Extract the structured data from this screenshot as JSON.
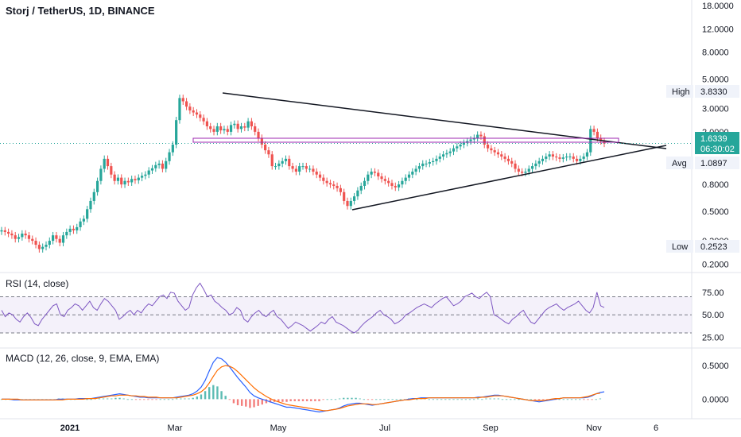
{
  "chart_data": [
    {
      "type": "candlestick",
      "title": "Storj / TetherUS, 1D, BINANCE",
      "yscale": "log",
      "ylim": [
        0.18,
        18.5
      ],
      "x_tick_labels": [
        "2021",
        "Mar",
        "May",
        "Jul",
        "Sep",
        "Nov",
        "6"
      ],
      "y_tick_labels": [
        "18.0000",
        "12.0000",
        "8.0000",
        "5.0000",
        "3.0000",
        "2.0000",
        "0.8000",
        "0.5000",
        "0.3000",
        "0.2000"
      ],
      "markers": {
        "high_label": "High",
        "high_value": "3.8330",
        "last_value": "1.6339",
        "countdown": "06:30:02",
        "avg_label": "Avg",
        "avg_value": "1.0897",
        "low_label": "Low",
        "low_value": "0.2523"
      },
      "series": [
        {
          "values": [
            0.36,
            0.35,
            0.34,
            0.33,
            0.31,
            0.32,
            0.34,
            0.33,
            0.31,
            0.3,
            0.28,
            0.26,
            0.27,
            0.28,
            0.3,
            0.33,
            0.31,
            0.29,
            0.33,
            0.35,
            0.37,
            0.36,
            0.38,
            0.42,
            0.44,
            0.52,
            0.6,
            0.7,
            0.85,
            1.05,
            1.25,
            1.1,
            0.95,
            0.85,
            0.9,
            0.8,
            0.85,
            0.83,
            0.88,
            0.86,
            0.9,
            0.93,
            0.95,
            1.02,
            1.06,
            1.12,
            1.15,
            1.05,
            1.2,
            1.4,
            1.6,
            2.45,
            3.6,
            3.4,
            3.1,
            2.9,
            2.8,
            2.7,
            2.55,
            2.4,
            2.2,
            2.1,
            2.0,
            2.2,
            2.05,
            2.1,
            2.0,
            2.25,
            2.3,
            2.1,
            2.2,
            2.15,
            2.4,
            2.2,
            2.0,
            1.8,
            1.6,
            1.45,
            1.35,
            1.1,
            1.1,
            1.15,
            1.2,
            1.25,
            1.1,
            1.05,
            1.0,
            1.1,
            1.1,
            1.05,
            1.05,
            1.0,
            0.95,
            0.9,
            0.85,
            0.82,
            0.8,
            0.78,
            0.75,
            0.7,
            0.6,
            0.55,
            0.6,
            0.65,
            0.72,
            0.78,
            0.85,
            0.95,
            1.0,
            0.98,
            0.92,
            0.88,
            0.85,
            0.82,
            0.78,
            0.76,
            0.8,
            0.85,
            0.9,
            0.95,
            1.0,
            1.05,
            1.1,
            1.15,
            1.15,
            1.18,
            1.2,
            1.25,
            1.3,
            1.35,
            1.38,
            1.42,
            1.5,
            1.55,
            1.6,
            1.65,
            1.7,
            1.75,
            1.8,
            1.9,
            1.85,
            1.6,
            1.5,
            1.45,
            1.4,
            1.35,
            1.3,
            1.25,
            1.2,
            1.15,
            1.05,
            1.0,
            0.98,
            1.0,
            1.05,
            1.1,
            1.15,
            1.2,
            1.25,
            1.3,
            1.35,
            1.3,
            1.28,
            1.25,
            1.28,
            1.3,
            1.3,
            1.25,
            1.2,
            1.25,
            1.3,
            1.4,
            2.1,
            2.0,
            1.8,
            1.7,
            1.63
          ]
        },
        {
          "name": "RSI (14, close)",
          "values": [
            55,
            48,
            52,
            50,
            45,
            42,
            48,
            52,
            47,
            40,
            38,
            45,
            50,
            55,
            60,
            62,
            50,
            48,
            55,
            58,
            62,
            60,
            55,
            60,
            65,
            58,
            55,
            62,
            68,
            65,
            60,
            55,
            45,
            48,
            52,
            55,
            50,
            55,
            52,
            58,
            62,
            60,
            65,
            70,
            72,
            68,
            75,
            74,
            65,
            60,
            55,
            58,
            72,
            80,
            85,
            78,
            70,
            72,
            65,
            62,
            58,
            55,
            50,
            52,
            58,
            55,
            45,
            42,
            48,
            52,
            55,
            50,
            48,
            52,
            55,
            48,
            45,
            40,
            35,
            38,
            42,
            40,
            38,
            35,
            32,
            35,
            38,
            42,
            40,
            45,
            48,
            42,
            40,
            38,
            35,
            32,
            30,
            33,
            38,
            42,
            45,
            48,
            52,
            55,
            50,
            48,
            45,
            40,
            42,
            45,
            50,
            52,
            55,
            58,
            60,
            62,
            60,
            58,
            62,
            65,
            68,
            70,
            65,
            60,
            62,
            65,
            70,
            72,
            74,
            70,
            68,
            72,
            75,
            70,
            50,
            48,
            45,
            42,
            40,
            45,
            48,
            52,
            55,
            48,
            42,
            40,
            45,
            50,
            55,
            58,
            60,
            62,
            58,
            55,
            58,
            60,
            62,
            65,
            60,
            55,
            52,
            58,
            75,
            60,
            58
          ]
        },
        {
          "name": "MACD line",
          "values": [
            0,
            0,
            0,
            -0.01,
            -0.01,
            -0.01,
            -0.01,
            -0.01,
            -0.01,
            -0.01,
            -0.01,
            -0.01,
            -0.01,
            -0.01,
            0,
            0,
            0,
            0,
            0,
            0.01,
            0.01,
            0.01,
            0.01,
            0.02,
            0.03,
            0.04,
            0.05,
            0.06,
            0.07,
            0.08,
            0.07,
            0.06,
            0.05,
            0.04,
            0.03,
            0.03,
            0.02,
            0.02,
            0.02,
            0.02,
            0.02,
            0.02,
            0.02,
            0.03,
            0.04,
            0.05,
            0.06,
            0.08,
            0.12,
            0.18,
            0.28,
            0.42,
            0.55,
            0.62,
            0.6,
            0.55,
            0.48,
            0.4,
            0.32,
            0.25,
            0.18,
            0.1,
            0.05,
            0.02,
            0,
            -0.02,
            -0.04,
            -0.06,
            -0.08,
            -0.1,
            -0.12,
            -0.12,
            -0.13,
            -0.14,
            -0.15,
            -0.16,
            -0.17,
            -0.18,
            -0.19,
            -0.18,
            -0.17,
            -0.16,
            -0.15,
            -0.13,
            -0.1,
            -0.08,
            -0.07,
            -0.06,
            -0.06,
            -0.07,
            -0.08,
            -0.09,
            -0.08,
            -0.07,
            -0.06,
            -0.05,
            -0.04,
            -0.03,
            -0.02,
            -0.01,
            0,
            0.01,
            0.01,
            0.02,
            0.02,
            0.02,
            0.02,
            0.02,
            0.02,
            0.02,
            0.02,
            0.02,
            0.02,
            0.02,
            0.02,
            0.02,
            0.02,
            0.03,
            0.03,
            0.04,
            0.05,
            0.06,
            0.06,
            0.05,
            0.04,
            0.03,
            0.02,
            0.01,
            0,
            -0.01,
            -0.02,
            -0.03,
            -0.04,
            -0.03,
            -0.02,
            -0.01,
            0,
            0.01,
            0.02,
            0.02,
            0.02,
            0.02,
            0.02,
            0.02,
            0.03,
            0.05,
            0.08,
            0.1,
            0.11
          ]
        },
        {
          "name": "Signal line",
          "values": [
            0,
            0,
            0,
            0,
            0,
            -0.01,
            -0.01,
            -0.01,
            -0.01,
            -0.01,
            -0.01,
            -0.01,
            -0.01,
            -0.01,
            -0.01,
            -0.01,
            0,
            0,
            0,
            0,
            0,
            0.01,
            0.01,
            0.01,
            0.02,
            0.03,
            0.04,
            0.05,
            0.05,
            0.06,
            0.06,
            0.06,
            0.05,
            0.05,
            0.04,
            0.04,
            0.03,
            0.03,
            0.03,
            0.02,
            0.02,
            0.02,
            0.02,
            0.02,
            0.03,
            0.04,
            0.05,
            0.06,
            0.08,
            0.11,
            0.16,
            0.24,
            0.34,
            0.43,
            0.48,
            0.5,
            0.49,
            0.46,
            0.41,
            0.35,
            0.29,
            0.23,
            0.17,
            0.12,
            0.08,
            0.04,
            0.01,
            -0.02,
            -0.04,
            -0.06,
            -0.08,
            -0.09,
            -0.1,
            -0.11,
            -0.12,
            -0.13,
            -0.14,
            -0.15,
            -0.16,
            -0.17,
            -0.17,
            -0.16,
            -0.15,
            -0.14,
            -0.12,
            -0.1,
            -0.09,
            -0.08,
            -0.07,
            -0.07,
            -0.07,
            -0.08,
            -0.08,
            -0.07,
            -0.06,
            -0.05,
            -0.04,
            -0.03,
            -0.02,
            -0.01,
            -0.01,
            0,
            0.01,
            0.01,
            0.01,
            0.02,
            0.02,
            0.02,
            0.02,
            0.02,
            0.02,
            0.02,
            0.02,
            0.02,
            0.02,
            0.02,
            0.02,
            0.02,
            0.03,
            0.03,
            0.04,
            0.05,
            0.05,
            0.05,
            0.04,
            0.03,
            0.02,
            0.01,
            0,
            -0.01,
            -0.02,
            -0.02,
            -0.02,
            -0.02,
            -0.01,
            0,
            0.01,
            0.01,
            0.02,
            0.02,
            0.02,
            0.02,
            0.02,
            0.03,
            0.04,
            0.06,
            0.08,
            0.09
          ]
        }
      ],
      "rsi_tick_labels": [
        "75.00",
        "50.00",
        "25.00"
      ],
      "macd_tick_labels": [
        "0.5000",
        "0.0000"
      ],
      "rsi_title": "RSI (14, close)",
      "macd_title": "MACD (12, 26, close, 9, EMA, EMA)",
      "colors": {
        "up": "#26a69a",
        "down": "#ef5350",
        "rsi": "#7e57c2",
        "macd": "#2962ff",
        "signal": "#ff6d00",
        "hline": "#9c27b0"
      }
    }
  ]
}
